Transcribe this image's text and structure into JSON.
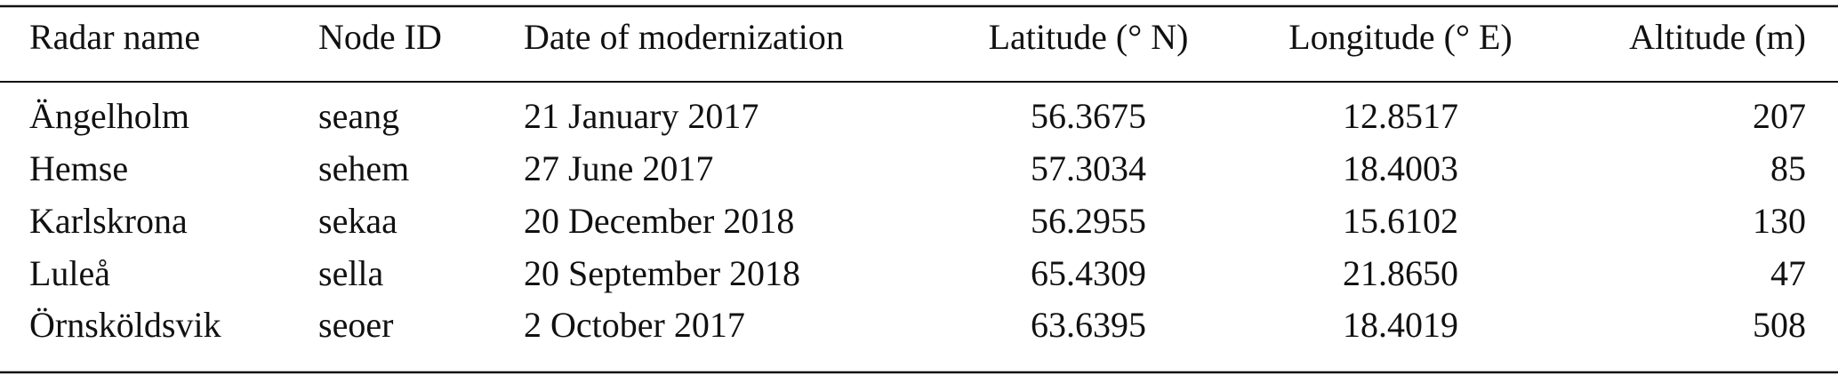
{
  "table": {
    "columns": [
      "Radar name",
      "Node ID",
      "Date of modernization",
      "Latitude (° N)",
      "Longitude (° E)",
      "Altitude (m)"
    ],
    "rows": [
      [
        "Ängelholm",
        "seang",
        "21 January 2017",
        "56.3675",
        "12.8517",
        "207"
      ],
      [
        "Hemse",
        "sehem",
        "27 June 2017",
        "57.3034",
        "18.4003",
        "85"
      ],
      [
        "Karlskrona",
        "sekaa",
        "20 December 2018",
        "56.2955",
        "15.6102",
        "130"
      ],
      [
        "Luleå",
        "sella",
        "20 September 2018",
        "65.4309",
        "21.8650",
        "47"
      ],
      [
        "Örnsköldsvik",
        "seoer",
        "2 October 2017",
        "63.6395",
        "18.4019",
        "508"
      ]
    ]
  }
}
